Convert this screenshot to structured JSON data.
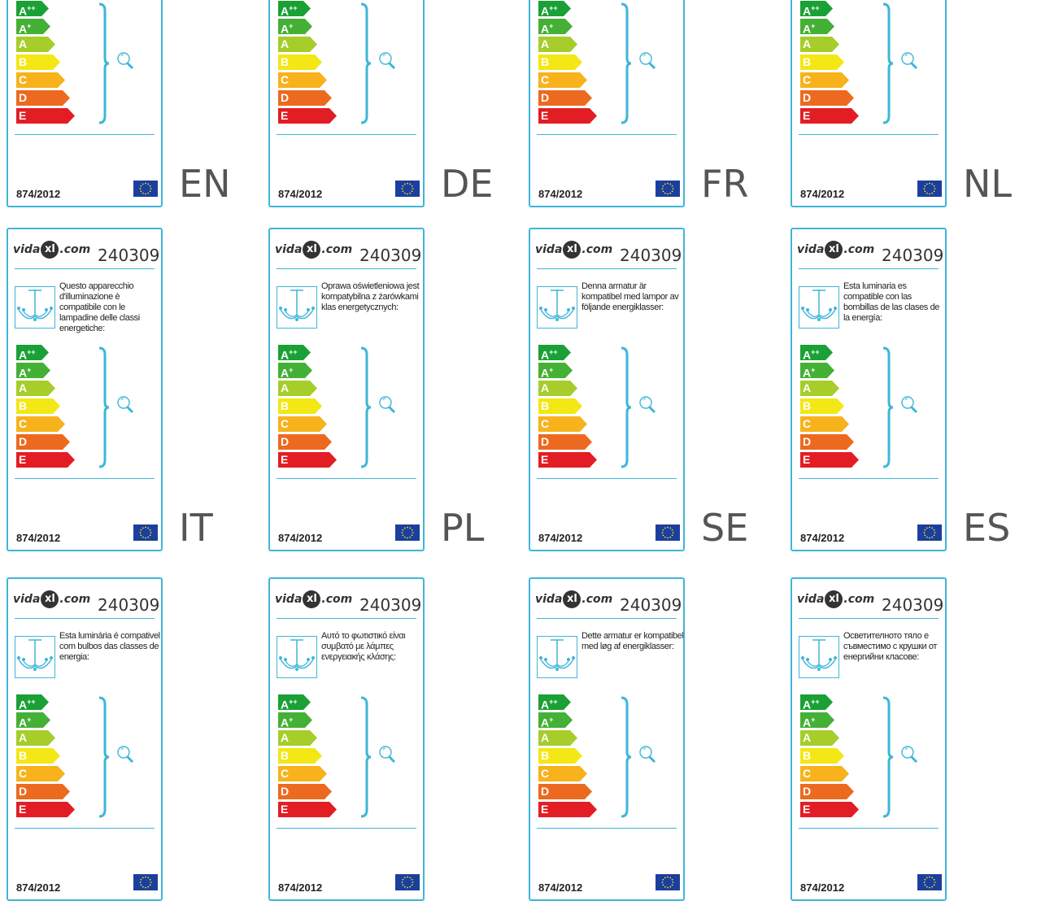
{
  "brand": {
    "prefix": "vida",
    "mark": "xl",
    "suffix": ".com"
  },
  "product_code": "240309",
  "regulation": "874/2012",
  "energy_classes": [
    "A++",
    "A+",
    "A",
    "B",
    "C",
    "D",
    "E"
  ],
  "class_colors": [
    "#1aa035",
    "#44b035",
    "#a6cd2a",
    "#f3e715",
    "#f7b21c",
    "#ec6a1f",
    "#e31d24"
  ],
  "labels": [
    {
      "lang": "EN",
      "description": ""
    },
    {
      "lang": "DE",
      "description": ""
    },
    {
      "lang": "FR",
      "description": ""
    },
    {
      "lang": "NL",
      "description": ""
    },
    {
      "lang": "IT",
      "description": "Questo apparecchio d'illuminazione è compatibile con le lampadine delle classi energetiche:"
    },
    {
      "lang": "PL",
      "description": "Oprawa oświetleniowa jest kompatybilna z żarówkami klas energetycznych:"
    },
    {
      "lang": "SE",
      "description": "Denna armatur är kompatibel med lampor av följande energiklasser:"
    },
    {
      "lang": "ES",
      "description": "Esta luminaria es compatible con las bombillas de las clases de la energía:"
    },
    {
      "lang": "",
      "description": "Esta luminária é compativel com bulbos das classes de energia:"
    },
    {
      "lang": "",
      "description": "Αυτό το φωτιστικό είναι συμβατό με λάμπες ενεργειακής κλάσης:"
    },
    {
      "lang": "",
      "description": "Dette armatur er kompatibel med løg af energiklasser:"
    },
    {
      "lang": "",
      "description": "Осветителното тяло е съвместимо с крушки от енергийни класове:"
    }
  ]
}
